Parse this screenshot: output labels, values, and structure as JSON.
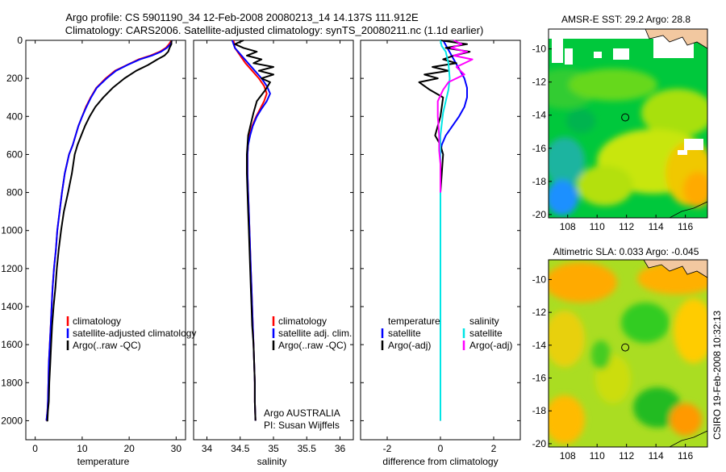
{
  "header": {
    "line1": "Argo profile: CS 5901190_34 12-Feb-2008 20080213_14 14.137S 111.912E",
    "line2": "Climatology: CARS2006. Satellite-adjusted climatology: synTS_20080211.nc (1.1d earlier)"
  },
  "footer": {
    "stamp": "CSIRO 19-Feb-2008 10:32:13"
  },
  "colors": {
    "red": "#ff0000",
    "blue": "#0000ff",
    "black": "#000000",
    "cyan": "#00e5e5",
    "magenta": "#ff00ff"
  },
  "chart_data": [
    {
      "type": "line",
      "xlabel": "temperature",
      "ylim": [
        2100,
        0
      ],
      "xlim": [
        -2,
        32
      ],
      "xticks": [
        0,
        10,
        20,
        30
      ],
      "yticks": [
        0,
        200,
        400,
        600,
        800,
        1000,
        1200,
        1400,
        1600,
        1800,
        2000
      ],
      "legend_items": [
        "climatology",
        "satellite-adjusted climatology",
        "Argo(..raw -QC)"
      ],
      "series": [
        {
          "name": "climatology",
          "color": "#ff0000",
          "x": [
            29.0,
            28.5,
            27.8,
            26.5,
            24.5,
            22.0,
            19.5,
            17.0,
            15.0,
            13.0,
            11.8,
            10.8,
            10.0,
            9.2,
            8.6,
            8.0,
            7.2,
            6.3,
            5.7,
            5.2,
            4.7,
            4.4,
            4.0,
            3.7,
            3.5,
            3.3,
            3.1,
            2.9,
            2.8,
            2.7,
            2.6,
            2.4
          ],
          "y": [
            0,
            20,
            40,
            60,
            80,
            100,
            130,
            160,
            200,
            250,
            300,
            350,
            400,
            450,
            500,
            550,
            600,
            700,
            800,
            900,
            1000,
            1100,
            1200,
            1300,
            1400,
            1500,
            1600,
            1700,
            1800,
            1900,
            1950,
            2000
          ]
        },
        {
          "name": "satellite-adjusted climatology",
          "color": "#0000ff",
          "x": [
            29.1,
            28.8,
            28.0,
            26.8,
            24.8,
            22.3,
            19.6,
            17.2,
            15.2,
            13.1,
            11.9,
            10.9,
            10.0,
            9.2,
            8.6,
            8.0,
            7.2,
            6.3,
            5.7,
            5.2,
            4.7,
            4.4,
            4.0,
            3.7,
            3.5,
            3.3,
            3.1,
            2.9,
            2.8,
            2.7,
            2.6,
            2.4
          ],
          "y": [
            0,
            20,
            40,
            60,
            80,
            100,
            130,
            160,
            200,
            250,
            300,
            350,
            400,
            450,
            500,
            550,
            600,
            700,
            800,
            900,
            1000,
            1100,
            1200,
            1300,
            1400,
            1500,
            1600,
            1700,
            1800,
            1900,
            1950,
            2000
          ]
        },
        {
          "name": "Argo(..raw -QC)",
          "color": "#000000",
          "x": [
            29.0,
            29.0,
            28.6,
            28.3,
            27.5,
            26.0,
            24.0,
            21.5,
            19.0,
            16.5,
            14.5,
            12.8,
            11.6,
            10.6,
            9.8,
            9.0,
            8.4,
            7.8,
            7.0,
            6.1,
            5.5,
            5.0,
            4.6,
            4.3,
            3.9,
            3.6,
            3.4,
            3.2,
            3.0,
            2.9,
            2.7,
            2.6,
            2.4
          ],
          "y": [
            0,
            20,
            40,
            60,
            80,
            100,
            130,
            160,
            200,
            250,
            300,
            350,
            400,
            450,
            500,
            550,
            600,
            700,
            800,
            900,
            1000,
            1100,
            1200,
            1300,
            1400,
            1500,
            1600,
            1700,
            1800,
            1900,
            1950,
            2000,
            2000
          ]
        }
      ]
    },
    {
      "type": "line",
      "xlabel": "salinity",
      "ylim": [
        2100,
        0
      ],
      "xlim": [
        33.8,
        36.2
      ],
      "xticks": [
        34,
        34.5,
        35,
        35.5,
        36
      ],
      "yticks": [
        0,
        200,
        400,
        600,
        800,
        1000,
        1200,
        1400,
        1600,
        1800,
        2000
      ],
      "legend_items": [
        "climatology",
        "satellite adj. clim.",
        "Argo(..raw -QC)"
      ],
      "annotations": [
        "Argo AUSTRALIA",
        "PI: Susan Wijffels"
      ],
      "series": [
        {
          "name": "climatology",
          "color": "#ff0000",
          "x": [
            34.4,
            34.42,
            34.5,
            34.58,
            34.68,
            34.78,
            34.86,
            34.9,
            34.86,
            34.8,
            34.74,
            34.68,
            34.64,
            34.62,
            34.61,
            34.61,
            34.61,
            34.62,
            34.63,
            34.64,
            34.65,
            34.66,
            34.67,
            34.68,
            34.69,
            34.7,
            34.71,
            34.72,
            34.72,
            34.73
          ],
          "y": [
            0,
            40,
            80,
            120,
            160,
            200,
            240,
            280,
            320,
            360,
            400,
            450,
            500,
            550,
            600,
            650,
            700,
            800,
            900,
            1000,
            1100,
            1200,
            1300,
            1400,
            1500,
            1600,
            1700,
            1800,
            1900,
            2000
          ]
        },
        {
          "name": "satellite adj. clim.",
          "color": "#0000ff",
          "x": [
            34.38,
            34.42,
            34.52,
            34.62,
            34.72,
            34.82,
            34.9,
            34.95,
            34.9,
            34.82,
            34.75,
            34.69,
            34.65,
            34.62,
            34.61,
            34.61,
            34.61,
            34.62,
            34.63,
            34.64,
            34.65,
            34.66,
            34.67,
            34.68,
            34.69,
            34.7,
            34.71,
            34.72,
            34.72,
            34.73
          ],
          "y": [
            0,
            40,
            80,
            120,
            160,
            200,
            240,
            280,
            320,
            360,
            400,
            450,
            500,
            550,
            600,
            650,
            700,
            800,
            900,
            1000,
            1100,
            1200,
            1300,
            1400,
            1500,
            1600,
            1700,
            1800,
            1900,
            2000
          ]
        },
        {
          "name": "Argo(..raw -QC)",
          "color": "#000000",
          "x": [
            34.55,
            34.42,
            34.55,
            34.75,
            34.6,
            34.82,
            34.7,
            35.0,
            34.78,
            35.0,
            34.82,
            34.95,
            34.88,
            34.75,
            34.7,
            34.66,
            34.62,
            34.6,
            34.6,
            34.61,
            34.62,
            34.63,
            34.64,
            34.66,
            34.67,
            34.68,
            34.7,
            34.71,
            34.72,
            34.72,
            34.73
          ],
          "y": [
            0,
            20,
            40,
            60,
            80,
            100,
            120,
            140,
            160,
            180,
            200,
            220,
            260,
            320,
            380,
            440,
            500,
            600,
            700,
            800,
            900,
            1000,
            1100,
            1300,
            1400,
            1500,
            1600,
            1700,
            1800,
            1900,
            2000
          ]
        }
      ]
    },
    {
      "type": "line",
      "xlabel": "difference from climatology",
      "ylim": [
        2100,
        0
      ],
      "xlim": [
        -3,
        3
      ],
      "xticks": [
        -2,
        0,
        2
      ],
      "yticks": [
        0,
        200,
        400,
        600,
        800,
        1000,
        1200,
        1400,
        1600,
        1800,
        2000
      ],
      "legend_items": [
        "temperature",
        "satellite",
        "Argo(-adj)",
        "salinity",
        "satellite",
        "Argo(-adj)"
      ],
      "series": [
        {
          "name": "satellite",
          "color": "#0000ff",
          "x": [
            0.1,
            0.3,
            0.5,
            0.7,
            0.9,
            1.0,
            1.0,
            0.9,
            0.7,
            0.45,
            0.2,
            0.05,
            0.0,
            0.0,
            0.0,
            0.0,
            0.0
          ],
          "y": [
            0,
            50,
            100,
            150,
            200,
            250,
            300,
            350,
            400,
            450,
            500,
            550,
            600,
            800,
            1200,
            1600,
            2000
          ]
        },
        {
          "name": "Argo(-adj)",
          "color": "#000000",
          "x": [
            0.0,
            1.0,
            0.2,
            1.1,
            0.5,
            0.1,
            0.6,
            -0.3,
            0.3,
            -0.6,
            -0.1,
            -0.8,
            -0.4,
            0.1,
            0.0,
            -0.2,
            0.0,
            0.1,
            0.0,
            0.0,
            0.0,
            0.0
          ],
          "y": [
            0,
            20,
            40,
            60,
            80,
            100,
            120,
            140,
            160,
            180,
            200,
            220,
            260,
            300,
            400,
            500,
            550,
            600,
            800,
            1200,
            1600,
            2000
          ]
        },
        {
          "name": "satellite",
          "color": "#00e5e5",
          "x": [
            0.0,
            0.05,
            0.2,
            0.3,
            0.35,
            0.3,
            0.2,
            0.1,
            0.05,
            0.0,
            0.0,
            0.0,
            0.0
          ],
          "y": [
            0,
            30,
            60,
            120,
            200,
            260,
            320,
            380,
            440,
            500,
            800,
            1500,
            2000
          ]
        },
        {
          "name": "Argo(-adj)",
          "color": "#ff00ff",
          "x": [
            0.5,
            0.8,
            0.4,
            1.0,
            0.5,
            1.2,
            0.6,
            0.9,
            0.3,
            0.1,
            -0.1,
            -0.1,
            -0.05,
            -0.05,
            0.0,
            0.0
          ],
          "y": [
            0,
            20,
            40,
            60,
            80,
            100,
            140,
            180,
            220,
            260,
            320,
            400,
            500,
            580,
            650,
            800
          ]
        }
      ]
    },
    {
      "type": "heatmap",
      "title": "AMSR-E SST: 29.2  Argo: 28.8",
      "xticks": [
        108,
        110,
        112,
        114,
        116
      ],
      "yticks": [
        -10,
        -12,
        -14,
        -16,
        -18,
        -20
      ],
      "xlim": [
        106.7,
        117.5
      ],
      "ylim": [
        -20.2,
        -8.8
      ],
      "marker": {
        "lon": 111.912,
        "lat": -14.137
      }
    },
    {
      "type": "heatmap",
      "title": "Altimetric SLA: 0.033  Argo: -0.045",
      "xticks": [
        108,
        110,
        112,
        114,
        116
      ],
      "yticks": [
        -10,
        -12,
        -14,
        -16,
        -18,
        -20
      ],
      "xlim": [
        106.7,
        117.5
      ],
      "ylim": [
        -20.2,
        -8.8
      ],
      "marker": {
        "lon": 111.912,
        "lat": -14.137
      }
    }
  ]
}
